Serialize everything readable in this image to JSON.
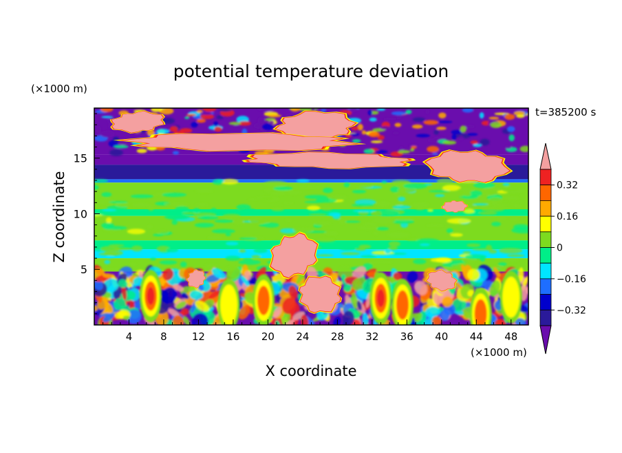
{
  "chart_data": {
    "type": "heatmap",
    "title": "potential temperature deviation",
    "time_label": "t=385200 s",
    "xlabel": "X coordinate",
    "ylabel": "Z coordinate",
    "x_unit": "(×1000 m)",
    "y_unit": "(×1000 m)",
    "xlim": [
      0,
      50
    ],
    "ylim": [
      0,
      19.5
    ],
    "x_ticks": [
      4,
      8,
      12,
      16,
      20,
      24,
      28,
      32,
      36,
      40,
      44,
      48
    ],
    "y_ticks": [
      5,
      10,
      15
    ],
    "colorbar": {
      "levels": [
        -0.4,
        -0.32,
        -0.24,
        -0.16,
        -0.08,
        0,
        0.08,
        0.16,
        0.24,
        0.32,
        0.4
      ],
      "tick_labels": [
        "0.32",
        "0.16",
        "0",
        "−0.16",
        "−0.32"
      ],
      "tick_values": [
        0.32,
        0.16,
        0,
        -0.16,
        -0.32
      ],
      "colors": [
        "#6a0dad",
        "#2a1a9a",
        "#0000cc",
        "#1e6eff",
        "#00e5ff",
        "#00ee88",
        "#7ddb1f",
        "#ffff00",
        "#ffaa00",
        "#ff6600",
        "#ee2222",
        "#f4a0a0"
      ]
    },
    "horizontal_bands": [
      {
        "z": [
          15.3,
          19.5
        ],
        "value": -0.5
      },
      {
        "z": [
          14.4,
          15.3
        ],
        "value": -0.42
      },
      {
        "z": [
          13.1,
          14.4
        ],
        "value": -0.36
      },
      {
        "z": [
          12.8,
          13.1
        ],
        "value": -0.2
      },
      {
        "z": [
          10.4,
          12.8
        ],
        "value": 0.04
      },
      {
        "z": [
          9.8,
          10.4
        ],
        "value": -0.04
      },
      {
        "z": [
          7.6,
          9.8
        ],
        "value": 0.04
      },
      {
        "z": [
          6.8,
          7.6
        ],
        "value": -0.04
      },
      {
        "z": [
          6.0,
          6.8
        ],
        "value": -0.12
      },
      {
        "z": [
          4.8,
          6.0
        ],
        "value": 0.0
      },
      {
        "z": [
          0,
          4.8
        ],
        "value": -0.48
      }
    ],
    "warm_regions": [
      {
        "name": "upper-left-cloud",
        "x": [
          1.5,
          8.5
        ],
        "z": [
          17.2,
          19.3
        ],
        "value": 0.45
      },
      {
        "name": "upper-center-cloud",
        "x": [
          20,
          31
        ],
        "z": [
          16.5,
          19.3
        ],
        "value": 0.45
      },
      {
        "name": "upper-band",
        "x": [
          0.5,
          33
        ],
        "z": [
          15.6,
          17.3
        ],
        "value": 0.45
      },
      {
        "name": "mid-upper-band",
        "x": [
          16,
          38
        ],
        "z": [
          14.0,
          15.6
        ],
        "value": 0.45
      },
      {
        "name": "right-upper-cloud",
        "x": [
          38,
          48
        ],
        "z": [
          12.5,
          16.0
        ],
        "value": 0.45
      },
      {
        "name": "right-small-lobe",
        "x": [
          40,
          43
        ],
        "z": [
          10.0,
          11.3
        ],
        "value": 0.45
      },
      {
        "name": "diagonal-updraft",
        "x": [
          20,
          26
        ],
        "z": [
          4.0,
          8.5
        ],
        "value": 0.45
      },
      {
        "name": "lower-plume-left",
        "x": [
          10.5,
          13
        ],
        "z": [
          3.3,
          5.0
        ],
        "value": 0.45
      },
      {
        "name": "lower-plume-center",
        "x": [
          23,
          29
        ],
        "z": [
          1.0,
          4.5
        ],
        "value": 0.45
      },
      {
        "name": "lower-plume-right",
        "x": [
          38,
          42
        ],
        "z": [
          3.0,
          5.0
        ],
        "value": 0.45
      }
    ],
    "lower_warm_cells": [
      {
        "x": 6.5,
        "z": 2.6,
        "value": 0.36
      },
      {
        "x": 15.5,
        "z": 1.8,
        "value": 0.2
      },
      {
        "x": 19.5,
        "z": 2.2,
        "value": 0.28
      },
      {
        "x": 33,
        "z": 2.4,
        "value": 0.36
      },
      {
        "x": 35.5,
        "z": 1.8,
        "value": 0.3
      },
      {
        "x": 44.5,
        "z": 1.0,
        "value": 0.32
      },
      {
        "x": 48,
        "z": 2.5,
        "value": 0.2
      }
    ]
  }
}
